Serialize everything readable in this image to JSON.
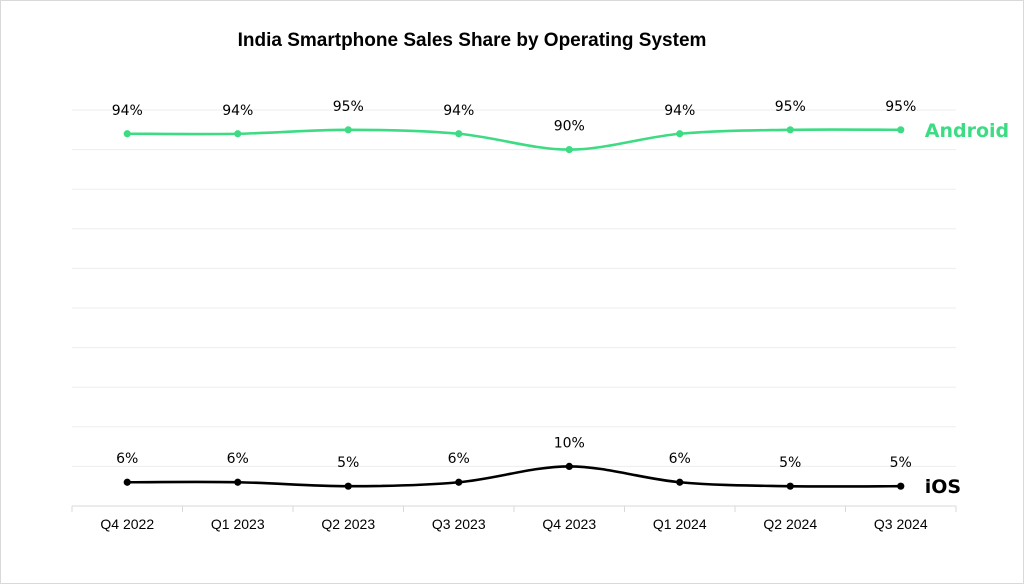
{
  "chart_data": {
    "type": "line",
    "title": "India Smartphone Sales Share by Operating System",
    "categories": [
      "Q4 2022",
      "Q1 2023",
      "Q2 2023",
      "Q3 2023",
      "Q4 2023",
      "Q1 2024",
      "Q2 2024",
      "Q3 2024"
    ],
    "series": [
      {
        "name": "Android",
        "color": "#3ddc84",
        "values": [
          94,
          94,
          95,
          94,
          90,
          94,
          95,
          95
        ],
        "labels": [
          "94%",
          "94%",
          "95%",
          "94%",
          "90%",
          "94%",
          "95%",
          "95%"
        ]
      },
      {
        "name": "iOS",
        "color": "#000000",
        "values": [
          6,
          6,
          5,
          6,
          10,
          6,
          5,
          5
        ],
        "labels": [
          "6%",
          "6%",
          "5%",
          "6%",
          "10%",
          "6%",
          "5%",
          "5%"
        ]
      }
    ],
    "ylim": [
      0,
      100
    ],
    "grid": true,
    "legend": "series names at line ends, right"
  }
}
